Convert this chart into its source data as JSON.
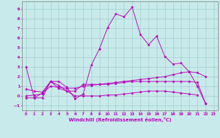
{
  "xlabel": "Windchill (Refroidissement éolien,°C)",
  "background_color": "#c8eaea",
  "grid_color": "#a0cccc",
  "line_color": "#bb00bb",
  "xlim": [
    -0.5,
    23.5
  ],
  "ylim": [
    -1.5,
    9.8
  ],
  "xticks": [
    0,
    1,
    2,
    3,
    4,
    5,
    6,
    7,
    8,
    9,
    10,
    11,
    12,
    13,
    14,
    15,
    16,
    17,
    18,
    19,
    20,
    21,
    22,
    23
  ],
  "yticks": [
    -1,
    0,
    1,
    2,
    3,
    4,
    5,
    6,
    7,
    8,
    9
  ],
  "series": [
    {
      "x": [
        0,
        1,
        2,
        3,
        4,
        5,
        6,
        7,
        8,
        9,
        10,
        11,
        12,
        13,
        14,
        15,
        16,
        17,
        18,
        19,
        20,
        21,
        22
      ],
      "y": [
        3.0,
        -0.2,
        -0.2,
        1.5,
        1.5,
        0.9,
        -0.3,
        0.2,
        3.2,
        4.9,
        7.1,
        8.5,
        8.2,
        9.2,
        6.4,
        5.3,
        6.2,
        4.1,
        3.3,
        3.4,
        2.5,
        1.0,
        -0.8
      ]
    },
    {
      "x": [
        0,
        1,
        2,
        3,
        4,
        5,
        6,
        7,
        8,
        9,
        10,
        11,
        12,
        13,
        14,
        15,
        16,
        17,
        18,
        19,
        20,
        21,
        22
      ],
      "y": [
        -0.2,
        -0.2,
        0.3,
        1.0,
        0.9,
        0.8,
        0.8,
        1.0,
        1.1,
        1.2,
        1.3,
        1.4,
        1.5,
        1.6,
        1.7,
        1.8,
        1.9,
        2.0,
        2.2,
        2.4,
        2.5,
        2.4,
        2.0
      ]
    },
    {
      "x": [
        0,
        1,
        2,
        3,
        4,
        5,
        6,
        7,
        8,
        9,
        10,
        11,
        12,
        13,
        14,
        15,
        16,
        17,
        18,
        19,
        20,
        21
      ],
      "y": [
        0.0,
        0.1,
        0.2,
        1.5,
        1.1,
        0.5,
        0.0,
        0.0,
        0.0,
        0.0,
        0.1,
        0.1,
        0.2,
        0.3,
        0.4,
        0.5,
        0.5,
        0.5,
        0.4,
        0.3,
        0.2,
        0.1
      ]
    },
    {
      "x": [
        0,
        1,
        2,
        3,
        4,
        5,
        6,
        7,
        8,
        9,
        10,
        11,
        12,
        13,
        14,
        15,
        16,
        17,
        18,
        19,
        20,
        21,
        22
      ],
      "y": [
        0.7,
        0.5,
        0.4,
        1.5,
        0.8,
        0.5,
        0.5,
        1.2,
        1.2,
        1.2,
        1.2,
        1.3,
        1.4,
        1.5,
        1.5,
        1.5,
        1.5,
        1.5,
        1.5,
        1.5,
        1.5,
        1.4,
        -0.8
      ]
    }
  ]
}
